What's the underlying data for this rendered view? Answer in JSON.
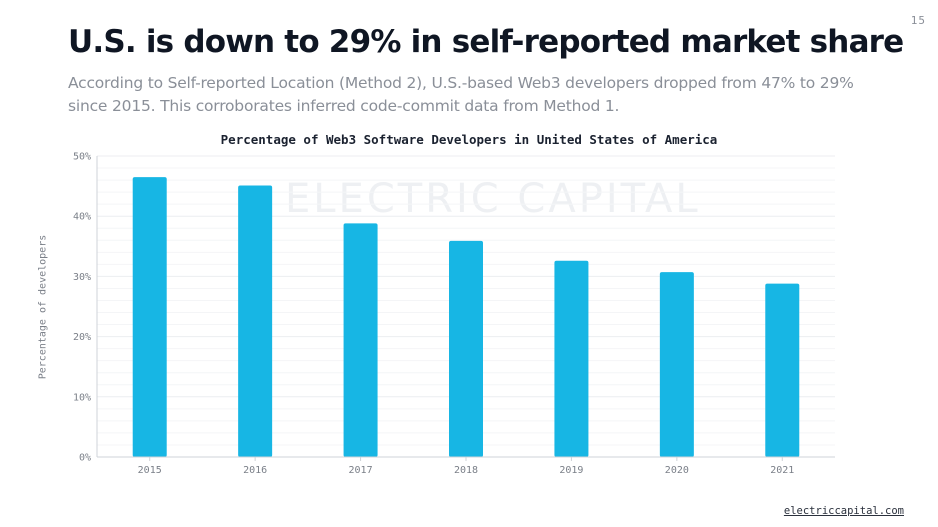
{
  "page_number": "15",
  "headline": "U.S. is down to 29% in self-reported market share",
  "subtitle": "According to Self-reported Location (Method 2), U.S.-based Web3 developers dropped from 47% to 29% since 2015. This corroborates inferred code-commit data from Method 1.",
  "watermark": "ELECTRIC CAPITAL",
  "footer_link": "electriccapital.com",
  "colors": {
    "bar": "#17b6e4",
    "grid": "#eceef1",
    "axis": "#cfd3d8"
  },
  "chart_data": {
    "type": "bar",
    "title": "Percentage of Web3 Software Developers in United States of America",
    "xlabel": "",
    "ylabel": "Percentage of developers",
    "categories": [
      "2015",
      "2016",
      "2017",
      "2018",
      "2019",
      "2020",
      "2021"
    ],
    "values": [
      46.5,
      45.1,
      38.8,
      35.9,
      32.6,
      30.7,
      28.8
    ],
    "unit": "%",
    "ylim": [
      0,
      50
    ],
    "yticks": [
      0,
      10,
      20,
      30,
      40,
      50
    ],
    "ytick_labels": [
      "0%",
      "10%",
      "20%",
      "30%",
      "40%",
      "50%"
    ],
    "grid": true,
    "legend": "none"
  }
}
